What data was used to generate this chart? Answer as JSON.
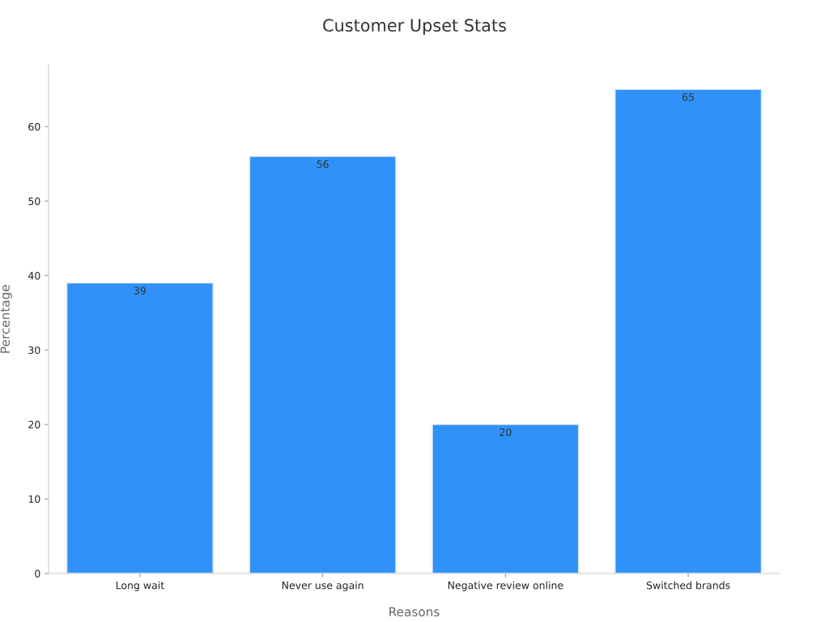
{
  "chart_data": {
    "type": "bar",
    "title": "Customer Upset Stats",
    "xlabel": "Reasons",
    "ylabel": "Percentage",
    "categories": [
      "Long wait",
      "Never use again",
      "Negative review online",
      "Switched brands"
    ],
    "values": [
      39,
      56,
      20,
      65
    ],
    "color": "#3092f8",
    "ylim": [
      0,
      68.3
    ],
    "yticks": [
      0,
      10,
      20,
      30,
      40,
      50,
      60
    ],
    "grid": false,
    "data_labels": true,
    "legend": false
  }
}
